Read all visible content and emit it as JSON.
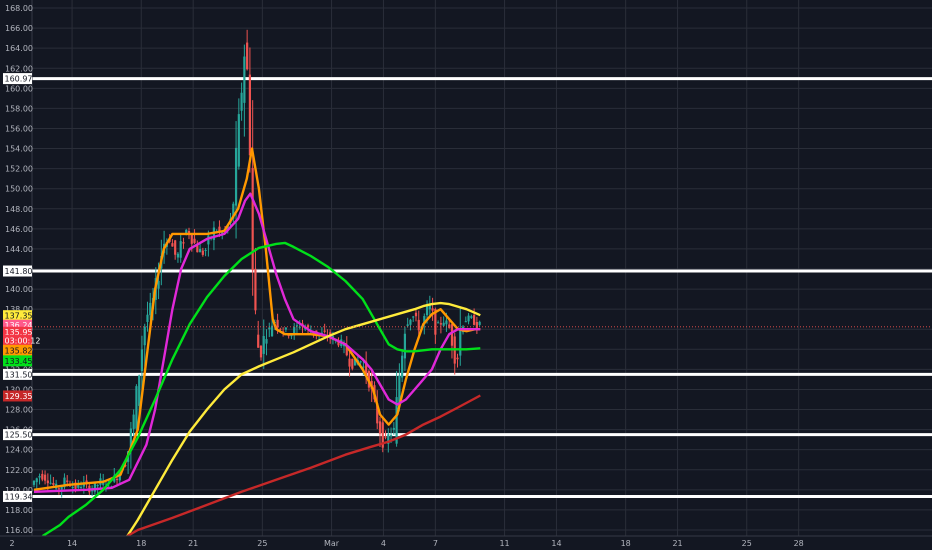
{
  "chart_data": {
    "type": "candlestick",
    "grid": true,
    "ylim": [
      115.4,
      168.8
    ],
    "xlim": [
      0,
      46.5
    ],
    "y_ticks": [
      "116.00",
      "118.00",
      "120.00",
      "122.00",
      "124.00",
      "126.00",
      "128.00",
      "130.00",
      "132.00",
      "134.00",
      "136.00",
      "138.00",
      "140.00",
      "142.00",
      "144.00",
      "146.00",
      "148.00",
      "150.00",
      "152.00",
      "154.00",
      "156.00",
      "158.00",
      "160.00",
      "162.00",
      "164.00",
      "166.00",
      "168.00"
    ],
    "x_ticks": [
      {
        "day": 2.2,
        "label": "14"
      },
      {
        "day": 6.2,
        "label": "18"
      },
      {
        "day": 9.2,
        "label": "21"
      },
      {
        "day": 13.2,
        "label": "25"
      },
      {
        "day": 17.2,
        "label": "Mar"
      },
      {
        "day": 20.2,
        "label": "4"
      },
      {
        "day": 23.2,
        "label": "7"
      },
      {
        "day": 27.2,
        "label": "11"
      },
      {
        "day": 30.2,
        "label": "14"
      },
      {
        "day": 34.2,
        "label": "18"
      },
      {
        "day": 37.2,
        "label": "21"
      },
      {
        "day": 41.2,
        "label": "25"
      },
      {
        "day": 44.2,
        "label": "28"
      }
    ],
    "corner_label": "2",
    "horizontal_levels": [
      160.97,
      141.8,
      131.5,
      125.5,
      119.34
    ],
    "price_line": 136.24,
    "candle_anchors": [
      [
        0,
        120.5
      ],
      [
        0.5,
        121.5
      ],
      [
        1,
        121
      ],
      [
        1.5,
        120
      ],
      [
        2,
        121
      ],
      [
        2.5,
        120.2
      ],
      [
        3,
        120.6
      ],
      [
        3.5,
        120
      ],
      [
        4,
        120.8
      ],
      [
        4.5,
        120.5
      ],
      [
        5,
        121.5
      ],
      [
        5.5,
        123
      ],
      [
        6,
        128
      ],
      [
        6.3,
        133
      ],
      [
        6.6,
        137
      ],
      [
        7,
        138.5
      ],
      [
        7.3,
        141
      ],
      [
        7.6,
        144.5
      ],
      [
        8,
        145
      ],
      [
        8.4,
        143
      ],
      [
        8.7,
        144.5
      ],
      [
        9,
        146
      ],
      [
        9.3,
        145
      ],
      [
        9.6,
        144
      ],
      [
        10,
        143.5
      ],
      [
        10.3,
        145
      ],
      [
        10.6,
        146
      ],
      [
        11,
        145.5
      ],
      [
        11.3,
        146
      ],
      [
        11.6,
        147
      ],
      [
        12,
        156
      ],
      [
        12.15,
        160
      ],
      [
        12.3,
        164
      ],
      [
        12.45,
        162
      ],
      [
        12.6,
        160
      ],
      [
        12.75,
        143
      ],
      [
        13,
        136
      ],
      [
        13.2,
        133
      ],
      [
        13.5,
        135.5
      ],
      [
        13.8,
        136
      ],
      [
        14,
        137
      ],
      [
        14.5,
        136
      ],
      [
        15,
        135.5
      ],
      [
        15.5,
        136.5
      ],
      [
        16,
        136
      ],
      [
        16.5,
        135.5
      ],
      [
        17,
        135.5
      ],
      [
        17.5,
        135
      ],
      [
        18,
        134.5
      ],
      [
        18.5,
        132.5
      ],
      [
        19,
        133
      ],
      [
        19.5,
        131
      ],
      [
        20,
        127
      ],
      [
        20.4,
        124.5
      ],
      [
        20.7,
        125.5
      ],
      [
        21,
        126
      ],
      [
        21.3,
        132
      ],
      [
        21.6,
        136.5
      ],
      [
        22,
        137.5
      ],
      [
        22.5,
        136
      ],
      [
        23,
        138.5
      ],
      [
        23.4,
        136
      ],
      [
        23.8,
        137
      ],
      [
        24.2,
        136
      ],
      [
        24.6,
        132.5
      ],
      [
        24.8,
        136
      ],
      [
        25,
        137
      ],
      [
        25.5,
        137
      ],
      [
        25.8,
        136.4
      ]
    ],
    "series": [
      {
        "color": "#ff9800",
        "points": [
          [
            0,
            120
          ],
          [
            2,
            120.5
          ],
          [
            4,
            120.8
          ],
          [
            5,
            121.5
          ],
          [
            6,
            126
          ],
          [
            6.5,
            133
          ],
          [
            7,
            140
          ],
          [
            7.5,
            144
          ],
          [
            8,
            145.5
          ],
          [
            9,
            145.5
          ],
          [
            10,
            145.5
          ],
          [
            11,
            145.8
          ],
          [
            11.8,
            148
          ],
          [
            12.3,
            151
          ],
          [
            12.6,
            154
          ],
          [
            13,
            150
          ],
          [
            13.4,
            144
          ],
          [
            13.8,
            137
          ],
          [
            14,
            136
          ],
          [
            14.5,
            135.5
          ],
          [
            15,
            135.5
          ],
          [
            16,
            135.5
          ],
          [
            17,
            135.3
          ],
          [
            18,
            134.5
          ],
          [
            19,
            132
          ],
          [
            19.6,
            130
          ],
          [
            20,
            127.5
          ],
          [
            20.5,
            126.5
          ],
          [
            21,
            127.5
          ],
          [
            21.5,
            131
          ],
          [
            22,
            134
          ],
          [
            22.5,
            136.5
          ],
          [
            23,
            137.5
          ],
          [
            23.5,
            138
          ],
          [
            24,
            137
          ],
          [
            24.5,
            136
          ],
          [
            25,
            135.8
          ],
          [
            25.5,
            136
          ],
          [
            25.8,
            136
          ]
        ]
      },
      {
        "color": "#e028d8",
        "points": [
          [
            0,
            119.8
          ],
          [
            3,
            120
          ],
          [
            4.5,
            120.2
          ],
          [
            5.5,
            121
          ],
          [
            6.5,
            124.5
          ],
          [
            7,
            128
          ],
          [
            7.5,
            133
          ],
          [
            8,
            138
          ],
          [
            8.5,
            142
          ],
          [
            9,
            144
          ],
          [
            10,
            145
          ],
          [
            11,
            145.5
          ],
          [
            11.8,
            147
          ],
          [
            12.2,
            148.8
          ],
          [
            12.5,
            149.5
          ],
          [
            13,
            147.5
          ],
          [
            13.5,
            144.5
          ],
          [
            14,
            141.5
          ],
          [
            14.5,
            139
          ],
          [
            15,
            137
          ],
          [
            16,
            135.8
          ],
          [
            17,
            135.3
          ],
          [
            18,
            134.5
          ],
          [
            19,
            133
          ],
          [
            19.5,
            132
          ],
          [
            20,
            130.5
          ],
          [
            20.5,
            129
          ],
          [
            21,
            128.5
          ],
          [
            21.5,
            129
          ],
          [
            22,
            130
          ],
          [
            22.5,
            131
          ],
          [
            23,
            132
          ],
          [
            23.5,
            134
          ],
          [
            24,
            135.5
          ],
          [
            24.5,
            136
          ],
          [
            25,
            136
          ],
          [
            25.8,
            136
          ]
        ]
      },
      {
        "color": "#00e01a",
        "points": [
          [
            0.5,
            115.4
          ],
          [
            1.5,
            116.5
          ],
          [
            2,
            117.3
          ],
          [
            3,
            118.5
          ],
          [
            4,
            120
          ],
          [
            5,
            122
          ],
          [
            6,
            125.2
          ],
          [
            7,
            129
          ],
          [
            8,
            133
          ],
          [
            9,
            136.5
          ],
          [
            10,
            139.2
          ],
          [
            11,
            141.3
          ],
          [
            12,
            143
          ],
          [
            13,
            144.1
          ],
          [
            14,
            144.5
          ],
          [
            14.5,
            144.6
          ],
          [
            15,
            144.2
          ],
          [
            16,
            143.3
          ],
          [
            17,
            142.2
          ],
          [
            18,
            140.8
          ],
          [
            19,
            139
          ],
          [
            19.5,
            137.5
          ],
          [
            20,
            136
          ],
          [
            20.5,
            134.5
          ],
          [
            21,
            134
          ],
          [
            21.5,
            133.8
          ],
          [
            22,
            133.8
          ],
          [
            23,
            134
          ],
          [
            24,
            134
          ],
          [
            25,
            134
          ],
          [
            25.8,
            134.1
          ]
        ]
      },
      {
        "color": "#ffeb3b",
        "points": [
          [
            5.4,
            115.4
          ],
          [
            6,
            117
          ],
          [
            7,
            120
          ],
          [
            8,
            123
          ],
          [
            9,
            125.8
          ],
          [
            10,
            128
          ],
          [
            11,
            130
          ],
          [
            12,
            131.5
          ],
          [
            13,
            132.3
          ],
          [
            14,
            133
          ],
          [
            15,
            133.7
          ],
          [
            16,
            134.5
          ],
          [
            17,
            135.3
          ],
          [
            18,
            136
          ],
          [
            19,
            136.5
          ],
          [
            20,
            137
          ],
          [
            21,
            137.5
          ],
          [
            22,
            138
          ],
          [
            22.5,
            138.3
          ],
          [
            23,
            138.5
          ],
          [
            23.5,
            138.6
          ],
          [
            24,
            138.5
          ],
          [
            25,
            138
          ],
          [
            25.8,
            137.4
          ]
        ]
      },
      {
        "color": "#c62828",
        "points": [
          [
            5.4,
            115.4
          ],
          [
            6,
            116
          ],
          [
            8,
            117.2
          ],
          [
            10,
            118.5
          ],
          [
            12,
            119.8
          ],
          [
            14,
            121
          ],
          [
            16,
            122.2
          ],
          [
            18,
            123.5
          ],
          [
            19.5,
            124.3
          ],
          [
            20.5,
            124.8
          ],
          [
            21.5,
            125.5
          ],
          [
            22.5,
            126.5
          ],
          [
            23.5,
            127.3
          ],
          [
            24.5,
            128.2
          ],
          [
            25.8,
            129.4
          ]
        ]
      }
    ],
    "price_badges": [
      {
        "value": 160.97,
        "label": "160.97",
        "bg": "#ffffff",
        "fg": "#131722"
      },
      {
        "value": 141.8,
        "label": "141.80",
        "bg": "#ffffff",
        "fg": "#131722"
      },
      {
        "value": 137.35,
        "label": "137.35",
        "bg": "#ffeb3b",
        "fg": "#131722"
      },
      {
        "value": 136.4,
        "label": "136.24",
        "bg": "#ff5a8c",
        "fg": "#ffffff"
      },
      {
        "value": 135.7,
        "label": "135.95",
        "bg": "#f23645",
        "fg": "#ffffff"
      },
      {
        "value": 134.9,
        "label": "03:00:12",
        "bg": "#f23645",
        "fg": "#ffffff"
      },
      {
        "value": 133.9,
        "label": "135.82",
        "bg": "#ff9800",
        "fg": "#131722"
      },
      {
        "value": 132.85,
        "label": "133.45",
        "bg": "#00e01a",
        "fg": "#131722"
      },
      {
        "value": 131.5,
        "label": "131.50",
        "bg": "#ffffff",
        "fg": "#131722"
      },
      {
        "value": 129.35,
        "label": "129.35",
        "bg": "#c62828",
        "fg": "#ffffff"
      },
      {
        "value": 125.5,
        "label": "125.50",
        "bg": "#ffffff",
        "fg": "#131722"
      },
      {
        "value": 119.34,
        "label": "119.34",
        "bg": "#ffffff",
        "fg": "#131722"
      }
    ],
    "colors": {
      "background": "#131722",
      "grid": "#2a2e39",
      "up": "#26a69a",
      "down": "#ef5350",
      "level": "#ffffff",
      "price_line": "#ef5350",
      "text": "#b2b5be"
    }
  }
}
